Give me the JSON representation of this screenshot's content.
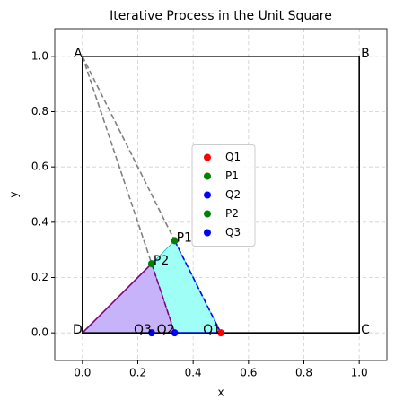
{
  "chart_data": {
    "type": "scatter",
    "title": "Iterative Process in the Unit Square",
    "x_label": "x",
    "y_label": "y",
    "xlim": [
      -0.1,
      1.1
    ],
    "ylim": [
      -0.1,
      1.1
    ],
    "xticks": [
      {
        "value": 0,
        "label": "0.0"
      },
      0.2,
      0.4,
      0.6,
      0.8,
      {
        "value": 1,
        "label": "1.0"
      }
    ],
    "yticks": [
      {
        "value": 0,
        "label": "0.0"
      },
      0.2,
      0.4,
      0.6,
      0.8,
      {
        "value": 1,
        "label": "1.0"
      }
    ],
    "grid": true,
    "legend": "center",
    "polygons": [
      {
        "color": "#9ffff6",
        "edge": "#00bfbf",
        "x": [
          0,
          0.3333,
          0.5
        ],
        "y": [
          0,
          0.3333,
          0
        ]
      },
      {
        "color": "#c7b3f9",
        "edge": "#800080",
        "x": [
          0,
          0.25,
          0.3333
        ],
        "y": [
          0,
          0.25,
          0
        ]
      }
    ],
    "lines": [
      {
        "color": "#000000",
        "dash": false,
        "x": [
          0,
          1,
          1,
          0,
          0
        ],
        "y": [
          1,
          1,
          0,
          0,
          1
        ]
      },
      {
        "color": "#808080",
        "dash": true,
        "x": [
          0,
          0.3333
        ],
        "y": [
          1,
          0.3333
        ]
      },
      {
        "color": "#808080",
        "dash": true,
        "x": [
          0,
          0.25
        ],
        "y": [
          1,
          0.25
        ]
      },
      {
        "color": "#0000ff",
        "dash": true,
        "x": [
          0.3333,
          0.5
        ],
        "y": [
          0.3333,
          0
        ]
      },
      {
        "color": "#800080",
        "dash": true,
        "x": [
          0.25,
          0.3333
        ],
        "y": [
          0.25,
          0
        ]
      },
      {
        "color": "#0000ff",
        "dash": false,
        "x": [
          0.3333,
          0.5
        ],
        "y": [
          0,
          0
        ]
      },
      {
        "color": "#800080",
        "dash": false,
        "x": [
          0,
          0.25
        ],
        "y": [
          0,
          0.25
        ]
      }
    ],
    "series": [
      {
        "name": "Q1",
        "color": "#ff0000",
        "x": [
          0.5
        ],
        "values": [
          0
        ]
      },
      {
        "name": "P1",
        "color": "#008000",
        "x": [
          0.3333
        ],
        "values": [
          0.3333
        ]
      },
      {
        "name": "Q2",
        "color": "#0000ff",
        "x": [
          0.3333
        ],
        "values": [
          0
        ]
      },
      {
        "name": "P2",
        "color": "#008000",
        "x": [
          0.25
        ],
        "values": [
          0.25
        ]
      },
      {
        "name": "Q3",
        "color": "#0000ff",
        "x": [
          0.25
        ],
        "values": [
          0
        ]
      }
    ],
    "annotations": [
      {
        "text": "A",
        "x": 0,
        "y": 1,
        "anchor": "end"
      },
      {
        "text": "B",
        "x": 1,
        "y": 1,
        "anchor": "start"
      },
      {
        "text": "C",
        "x": 1,
        "y": 0,
        "anchor": "start"
      },
      {
        "text": "D",
        "x": 0,
        "y": 0,
        "anchor": "end"
      },
      {
        "text": "P1",
        "x": 0.3333,
        "y": 0.3333,
        "anchor": "start"
      },
      {
        "text": "P2",
        "x": 0.25,
        "y": 0.25,
        "anchor": "start"
      },
      {
        "text": "Q1",
        "x": 0.5,
        "y": 0,
        "anchor": "end"
      },
      {
        "text": "Q2",
        "x": 0.3333,
        "y": 0,
        "anchor": "end"
      },
      {
        "text": "Q3",
        "x": 0.25,
        "y": 0,
        "anchor": "end"
      }
    ]
  }
}
